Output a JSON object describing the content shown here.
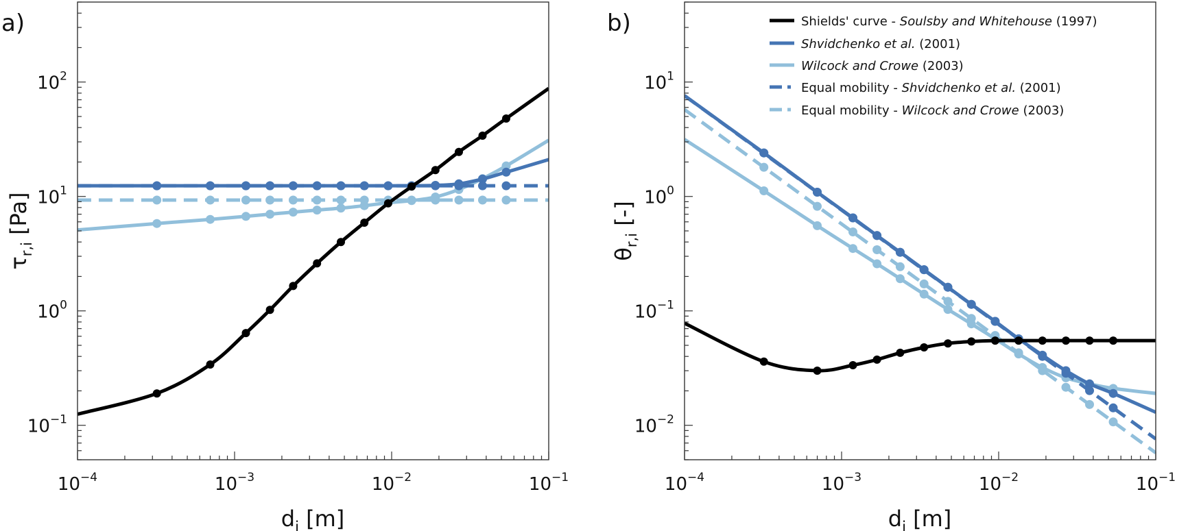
{
  "chart_data": [
    {
      "type": "line",
      "panel_label": "a)",
      "title": "",
      "xlabel": "d",
      "xlabel_sub": "i",
      "xlabel_unit": " [m]",
      "ylabel": "τ",
      "ylabel_sub": "r,i",
      "ylabel_unit": " [Pa]",
      "xscale": "log",
      "yscale": "log",
      "xlim": [
        0.0001,
        0.1
      ],
      "ylim": [
        0.05,
        500
      ],
      "xticks": [
        {
          "value": 0.0001,
          "base": "10",
          "exp": "−4"
        },
        {
          "value": 0.001,
          "base": "10",
          "exp": "−3"
        },
        {
          "value": 0.01,
          "base": "10",
          "exp": "−2"
        },
        {
          "value": 0.1,
          "base": "10",
          "exp": "−1"
        }
      ],
      "yticks": [
        {
          "value": 0.1,
          "base": "10",
          "exp": "−1"
        },
        {
          "value": 1,
          "base": "10",
          "exp": "0"
        },
        {
          "value": 10,
          "base": "10",
          "exp": "1"
        },
        {
          "value": 100,
          "base": "10",
          "exp": "2"
        }
      ],
      "grid": false,
      "markers_x": [
        0.00032,
        0.0007,
        0.00118,
        0.00168,
        0.00236,
        0.00335,
        0.00475,
        0.0067,
        0.0095,
        0.0134,
        0.019,
        0.0268,
        0.0379,
        0.0536
      ],
      "series": [
        {
          "name": "Shields' curve - Soulsby and Whitehouse (1997)",
          "color": "#000000",
          "dash": "solid",
          "curve_x": [
            0.0001,
            0.00032,
            0.0007,
            0.00118,
            0.00168,
            0.00236,
            0.00335,
            0.00475,
            0.0067,
            0.0095,
            0.0134,
            0.019,
            0.0268,
            0.0379,
            0.0536,
            0.1
          ],
          "curve_y": [
            0.125,
            0.19,
            0.34,
            0.64,
            1.02,
            1.65,
            2.6,
            4.0,
            5.9,
            8.7,
            12.2,
            17,
            24.5,
            34,
            48,
            88
          ],
          "marker_values": [
            0.19,
            0.34,
            0.64,
            1.02,
            1.65,
            2.6,
            4.0,
            5.9,
            8.7,
            12.2,
            17,
            24.5,
            34,
            48
          ]
        },
        {
          "name": "Shvidchenko et al. (2001)",
          "color": "#4575b4",
          "dash": "solid",
          "curve_x": [
            0.0001,
            0.00032,
            0.0007,
            0.00118,
            0.00168,
            0.00236,
            0.00335,
            0.00475,
            0.0067,
            0.0095,
            0.0134,
            0.019,
            0.0268,
            0.0379,
            0.0536,
            0.1
          ],
          "curve_y": [
            12.4,
            12.4,
            12.4,
            12.4,
            12.4,
            12.4,
            12.4,
            12.4,
            12.4,
            12.4,
            12.4,
            12.5,
            12.9,
            14.2,
            16.3,
            21
          ],
          "marker_values": [
            12.4,
            12.4,
            12.4,
            12.4,
            12.4,
            12.4,
            12.4,
            12.4,
            12.4,
            12.4,
            12.5,
            12.9,
            14.2,
            16.3
          ]
        },
        {
          "name": "Wilcock and Crowe (2003)",
          "color": "#91bfdb",
          "dash": "solid",
          "curve_x": [
            0.0001,
            0.00032,
            0.0007,
            0.00118,
            0.00168,
            0.00236,
            0.00335,
            0.00475,
            0.0067,
            0.0095,
            0.0134,
            0.019,
            0.0268,
            0.0379,
            0.0536,
            0.1
          ],
          "curve_y": [
            5.1,
            5.8,
            6.3,
            6.7,
            7.0,
            7.3,
            7.6,
            7.9,
            8.3,
            8.8,
            9.2,
            9.9,
            11.5,
            14.3,
            18.5,
            31
          ],
          "marker_values": [
            5.8,
            6.3,
            6.7,
            7.0,
            7.3,
            7.6,
            7.9,
            8.3,
            8.8,
            9.2,
            9.9,
            11.5,
            14.3,
            18.5
          ]
        },
        {
          "name": "Equal mobility - Shvidchenko et al. (2001)",
          "color": "#4575b4",
          "dash": "dashed",
          "curve_x": [
            0.0001,
            0.1
          ],
          "curve_y": [
            12.4,
            12.4
          ],
          "marker_values": [
            12.4,
            12.4,
            12.4,
            12.4,
            12.4,
            12.4,
            12.4,
            12.4,
            12.4,
            12.4,
            12.4,
            12.4,
            12.4,
            12.4
          ]
        },
        {
          "name": "Equal mobility - Wilcock and Crowe (2003)",
          "color": "#91bfdb",
          "dash": "dashed",
          "curve_x": [
            0.0001,
            0.1
          ],
          "curve_y": [
            9.3,
            9.3
          ],
          "marker_values": [
            9.3,
            9.3,
            9.3,
            9.3,
            9.3,
            9.3,
            9.3,
            9.3,
            9.3,
            9.3,
            9.3,
            9.3,
            9.3,
            9.3
          ]
        }
      ]
    },
    {
      "type": "line",
      "panel_label": "b)",
      "title": "",
      "xlabel": "d",
      "xlabel_sub": "i",
      "xlabel_unit": " [m]",
      "ylabel": "θ",
      "ylabel_sub": "r,i",
      "ylabel_unit": " [-]",
      "xscale": "log",
      "yscale": "log",
      "xlim": [
        0.0001,
        0.1
      ],
      "ylim": [
        0.005,
        50
      ],
      "xticks": [
        {
          "value": 0.0001,
          "base": "10",
          "exp": "−4"
        },
        {
          "value": 0.001,
          "base": "10",
          "exp": "−3"
        },
        {
          "value": 0.01,
          "base": "10",
          "exp": "−2"
        },
        {
          "value": 0.1,
          "base": "10",
          "exp": "−1"
        }
      ],
      "yticks": [
        {
          "value": 0.01,
          "base": "10",
          "exp": "−2"
        },
        {
          "value": 0.1,
          "base": "10",
          "exp": "−1"
        },
        {
          "value": 1,
          "base": "10",
          "exp": "0"
        },
        {
          "value": 10,
          "base": "10",
          "exp": "1"
        }
      ],
      "grid": false,
      "legend_position": "top-right",
      "markers_x": [
        0.00032,
        0.0007,
        0.00118,
        0.00168,
        0.00236,
        0.00335,
        0.00475,
        0.0067,
        0.0095,
        0.0134,
        0.019,
        0.0268,
        0.0379,
        0.0536
      ],
      "series": [
        {
          "name": "Shields' curve - Soulsby and Whitehouse (1997)",
          "color": "#000000",
          "dash": "solid",
          "curve_x": [
            0.0001,
            0.00032,
            0.0007,
            0.00118,
            0.00168,
            0.00236,
            0.00335,
            0.00475,
            0.0067,
            0.0095,
            0.0134,
            0.019,
            0.0268,
            0.0379,
            0.0536,
            0.1
          ],
          "curve_y": [
            0.078,
            0.036,
            0.03,
            0.0335,
            0.0375,
            0.043,
            0.048,
            0.052,
            0.054,
            0.055,
            0.055,
            0.055,
            0.055,
            0.055,
            0.055,
            0.055
          ],
          "marker_values": [
            0.036,
            0.03,
            0.0335,
            0.0375,
            0.043,
            0.048,
            0.052,
            0.054,
            0.055,
            0.055,
            0.055,
            0.055,
            0.055,
            0.055
          ]
        },
        {
          "name": "Shvidchenko et al. (2001)",
          "color": "#4575b4",
          "dash": "solid",
          "curve_x": [
            0.0001,
            0.00032,
            0.0007,
            0.00118,
            0.00168,
            0.00236,
            0.00335,
            0.00475,
            0.0067,
            0.0095,
            0.0134,
            0.019,
            0.0268,
            0.0379,
            0.0536,
            0.1
          ],
          "curve_y": [
            7.6,
            2.4,
            1.09,
            0.65,
            0.455,
            0.325,
            0.229,
            0.161,
            0.114,
            0.081,
            0.057,
            0.041,
            0.03,
            0.023,
            0.019,
            0.013
          ],
          "marker_values": [
            2.4,
            1.09,
            0.65,
            0.455,
            0.325,
            0.229,
            0.161,
            0.114,
            0.081,
            0.057,
            0.041,
            0.03,
            0.023,
            0.019
          ]
        },
        {
          "name": "Wilcock and Crowe (2003)",
          "color": "#91bfdb",
          "dash": "solid",
          "curve_x": [
            0.0001,
            0.00032,
            0.0007,
            0.00118,
            0.00168,
            0.00236,
            0.00335,
            0.00475,
            0.0067,
            0.0095,
            0.0134,
            0.019,
            0.0268,
            0.0379,
            0.0536,
            0.1
          ],
          "curve_y": [
            3.15,
            1.12,
            0.555,
            0.351,
            0.258,
            0.191,
            0.14,
            0.103,
            0.077,
            0.057,
            0.042,
            0.032,
            0.026,
            0.023,
            0.021,
            0.019
          ],
          "marker_values": [
            1.12,
            0.555,
            0.351,
            0.258,
            0.191,
            0.14,
            0.103,
            0.077,
            0.057,
            0.042,
            0.032,
            0.026,
            0.023,
            0.021
          ]
        },
        {
          "name": "Equal mobility - Shvidchenko et al. (2001)",
          "color": "#4575b4",
          "dash": "dashed",
          "curve_x": [
            0.0001,
            0.1
          ],
          "curve_y": [
            7.6,
            0.0076
          ],
          "marker_values": [
            2.4,
            1.09,
            0.65,
            0.455,
            0.325,
            0.229,
            0.161,
            0.114,
            0.081,
            0.057,
            0.04,
            0.0285,
            0.0201,
            0.0142
          ]
        },
        {
          "name": "Equal mobility - Wilcock and Crowe (2003)",
          "color": "#91bfdb",
          "dash": "dashed",
          "curve_x": [
            0.0001,
            0.1
          ],
          "curve_y": [
            5.75,
            0.00575
          ],
          "marker_values": [
            1.8,
            0.82,
            0.49,
            0.342,
            0.243,
            0.172,
            0.121,
            0.086,
            0.061,
            0.043,
            0.03,
            0.0215,
            0.0152,
            0.0107
          ]
        }
      ]
    }
  ],
  "legend": {
    "entries": [
      {
        "plain_before": "Shields' curve - ",
        "italic": "Soulsby and Whitehouse",
        "plain_after": " (1997)",
        "color": "#000000",
        "dash": "solid"
      },
      {
        "plain_before": "",
        "italic": "Shvidchenko et al.",
        "plain_after": " (2001)",
        "color": "#4575b4",
        "dash": "solid"
      },
      {
        "plain_before": "",
        "italic": "Wilcock and Crowe",
        "plain_after": " (2003)",
        "color": "#91bfdb",
        "dash": "solid"
      },
      {
        "plain_before": "Equal mobility - ",
        "italic": "Shvidchenko et al.",
        "plain_after": " (2001)",
        "color": "#4575b4",
        "dash": "dashed"
      },
      {
        "plain_before": "Equal mobility - ",
        "italic": "Wilcock and Crowe",
        "plain_after": " (2003)",
        "color": "#91bfdb",
        "dash": "dashed"
      }
    ]
  }
}
